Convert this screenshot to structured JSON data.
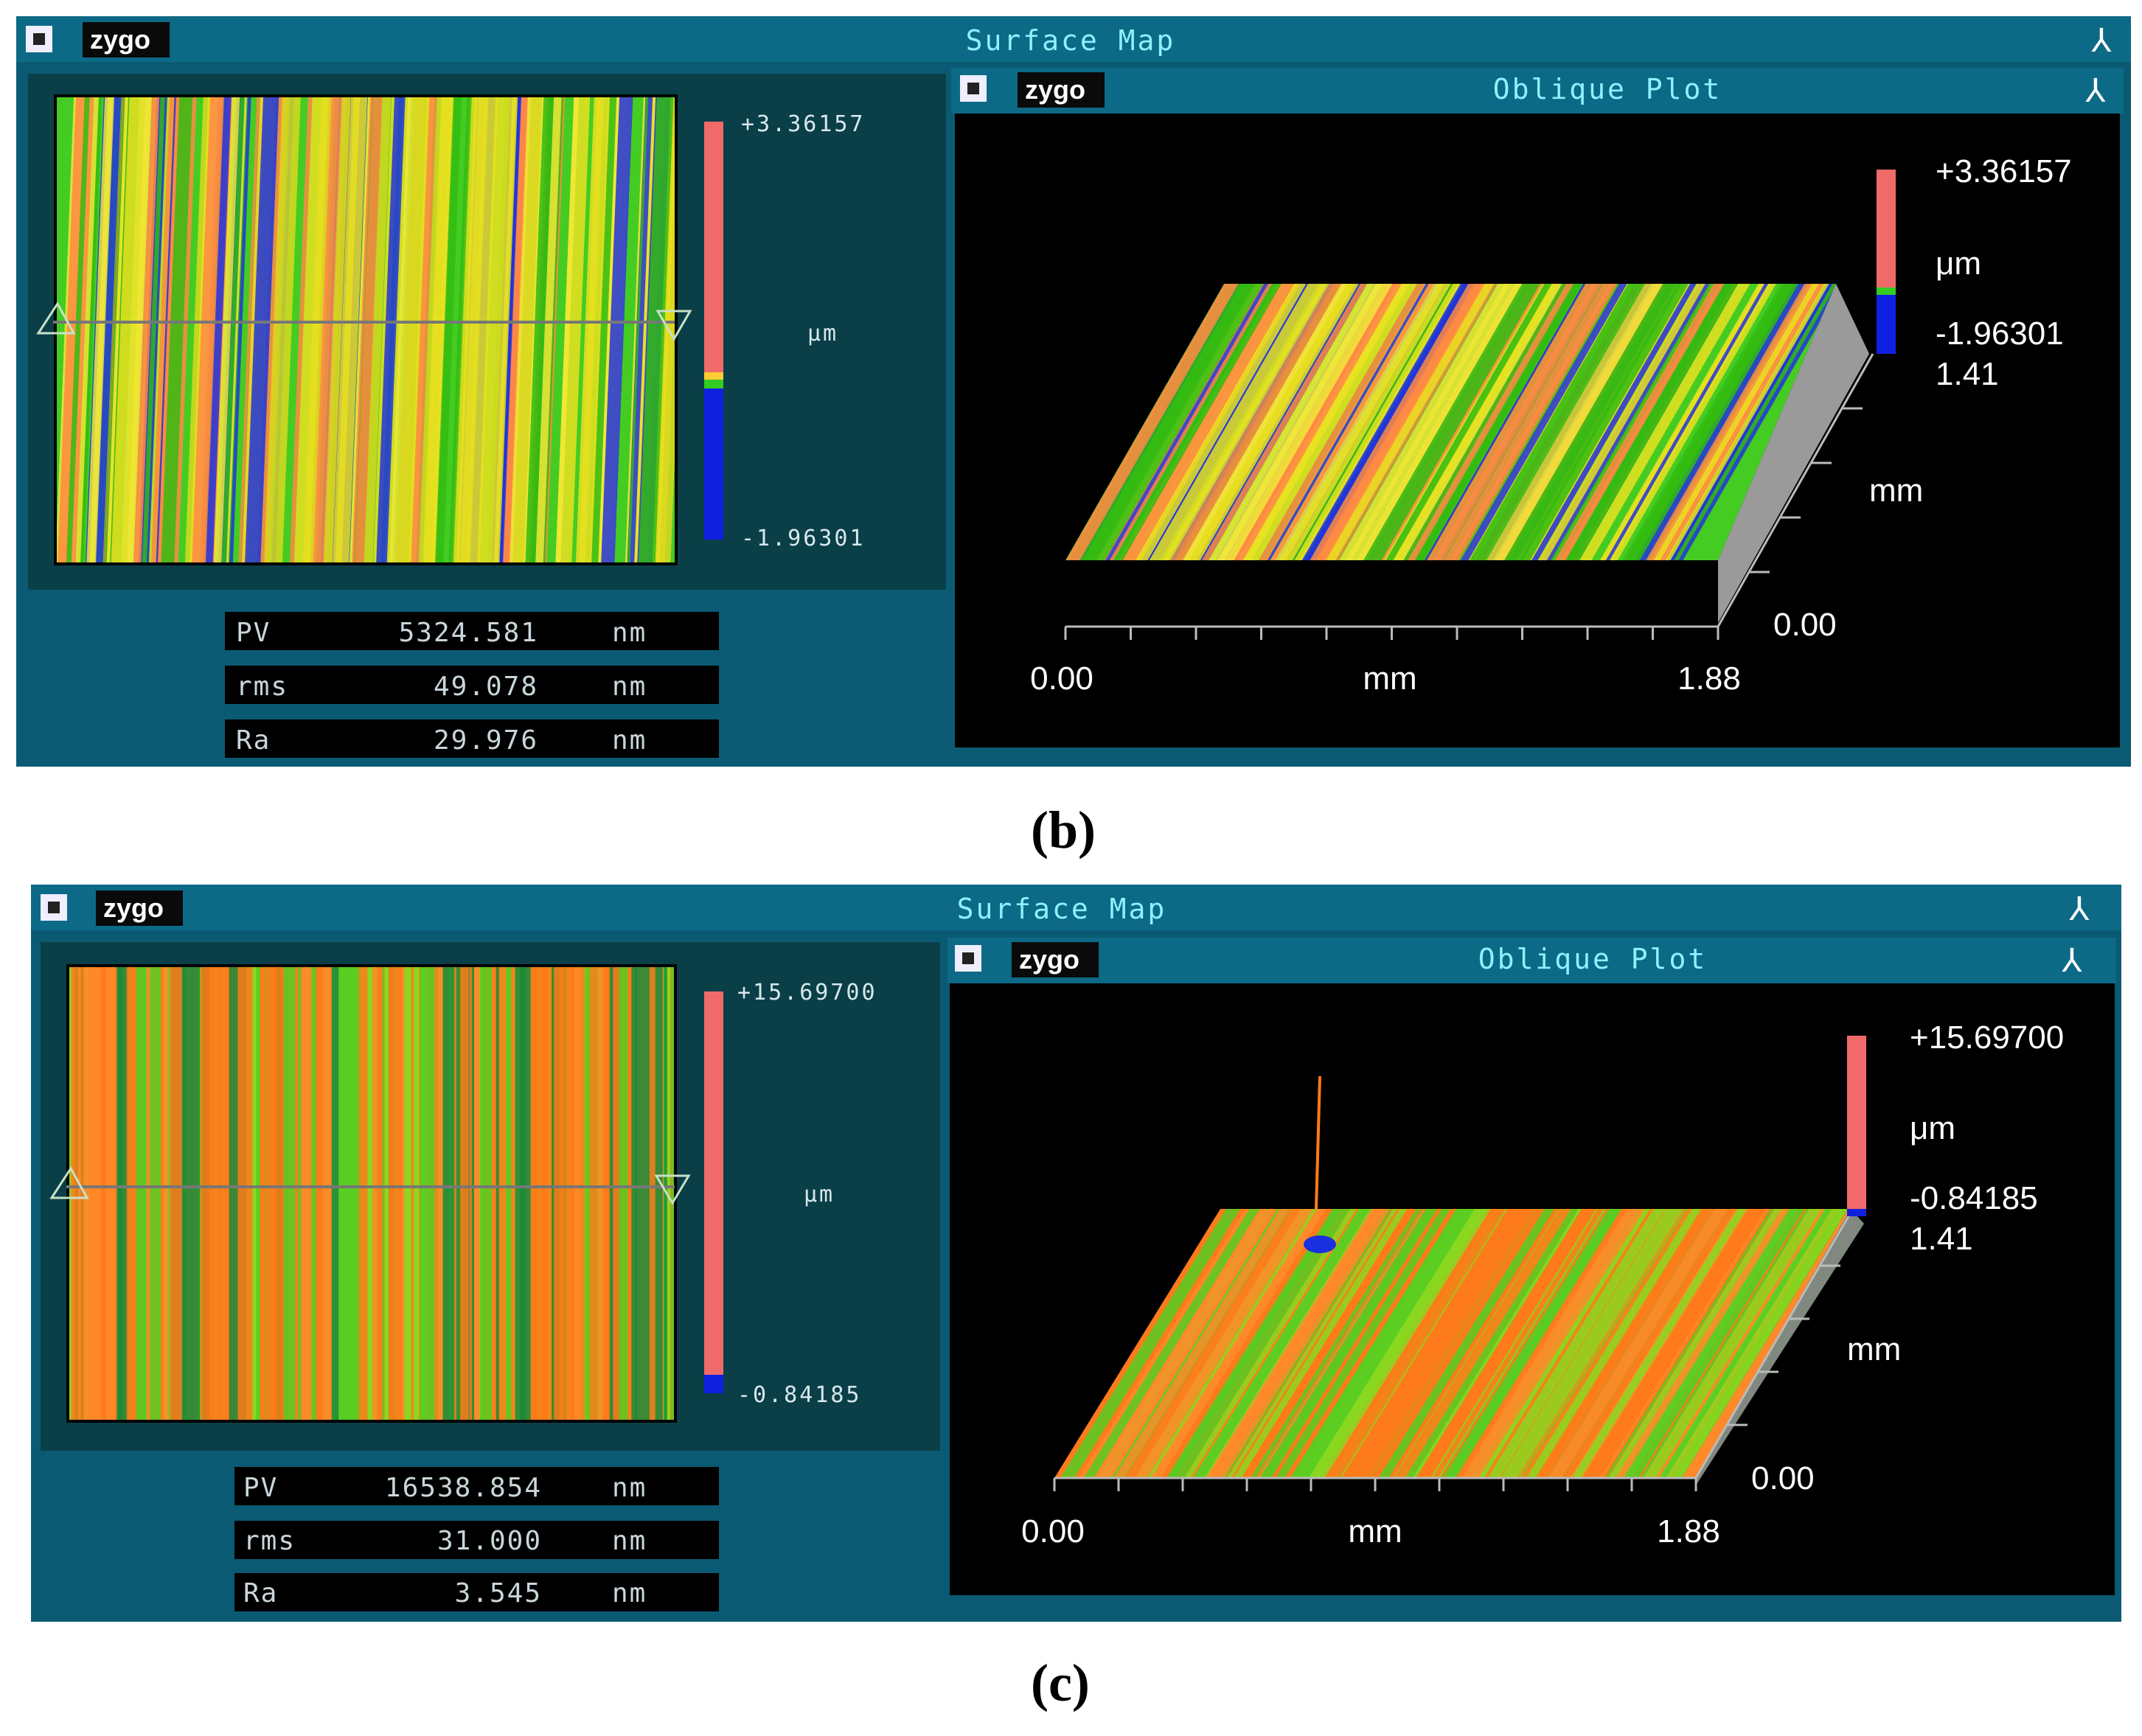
{
  "panels": [
    {
      "window_title": "Surface Map",
      "logo": "zygo",
      "colorbar": {
        "max": "+3.36157",
        "min": "-1.96301",
        "unit": "μm"
      },
      "stats": [
        {
          "label": "PV",
          "value": "5324.581",
          "unit": "nm"
        },
        {
          "label": "rms",
          "value": "49.078",
          "unit": "nm"
        },
        {
          "label": "Ra",
          "value": "29.976",
          "unit": "nm"
        }
      ],
      "oblique": {
        "title": "Oblique Plot",
        "logo": "zygo",
        "zmax": "+3.36157",
        "zunit": "μm",
        "zmin": "-1.96301",
        "ymax": "1.41",
        "yunit": "mm",
        "ymin": "0.00",
        "xmin": "0.00",
        "xunit": "mm",
        "xmax": "1.88"
      },
      "caption": "(b)"
    },
    {
      "window_title": "Surface Map",
      "logo": "zygo",
      "colorbar": {
        "max": "+15.69700",
        "min": "-0.84185",
        "unit": "μm"
      },
      "stats": [
        {
          "label": "PV",
          "value": "16538.854",
          "unit": "nm"
        },
        {
          "label": "rms",
          "value": "31.000",
          "unit": "nm"
        },
        {
          "label": "Ra",
          "value": "3.545",
          "unit": "nm"
        }
      ],
      "oblique": {
        "title": "Oblique Plot",
        "logo": "zygo",
        "zmax": "+15.69700",
        "zunit": "μm",
        "zmin": "-0.84185",
        "ymax": "1.41",
        "yunit": "mm",
        "ymin": "0.00",
        "xmin": "0.00",
        "xunit": "mm",
        "xmax": "1.88"
      },
      "caption": "(c)"
    }
  ],
  "colors": {
    "window_bg": "#0b5a73",
    "inner_bg": "#0a3f48",
    "stat_box": "#000000",
    "plot_bg": "#000000",
    "bar_high": "#f06a6a",
    "bar_low": "#1020e0",
    "stripe_green": "#33cc22",
    "stripe_yellow": "#e8e020",
    "stripe_orange": "#ff7a1a"
  }
}
